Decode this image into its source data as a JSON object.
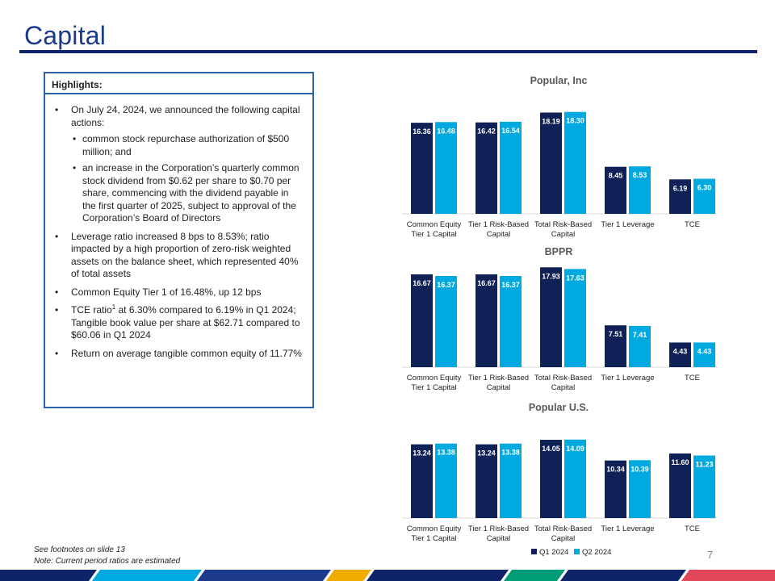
{
  "title": "Capital",
  "highlights": {
    "heading": "Highlights:",
    "b1": "On July 24, 2024, we announced the following capital actions:",
    "b1_sub1": "common stock repurchase authorization of $500 million; and",
    "b1_sub2": "an increase in the Corporation’s quarterly common stock dividend from $0.62 per share to $0.70 per share, commencing with the dividend payable in the first quarter of 2025, subject to approval of the Corporation’s Board of Directors",
    "b2": "Leverage ratio increased 8 bps to 8.53%; ratio impacted by a high proportion of zero-risk weighted assets on the balance sheet, which represented 40% of total assets",
    "b3": "Common Equity Tier 1 of 16.48%, up 12 bps",
    "b4_pre": "TCE ratio",
    "b4_sup": "1",
    "b4_post": " at 6.30% compared to 6.19% in Q1 2024; Tangible book value per share at $62.71 compared to $60.06 in Q1 2024",
    "b5": "Return on average tangible common equity of 11.77%"
  },
  "colors": {
    "title": "#1b3a8c",
    "q1": "#0f2157",
    "q2": "#00a9e0",
    "box_border": "#2a62ad"
  },
  "chart_data": [
    {
      "type": "bar",
      "title": "Popular, Inc",
      "categories": [
        "Common Equity Tier 1 Capital",
        "Tier 1 Risk-Based Capital",
        "Total Risk-Based Capital",
        "Tier 1 Leverage",
        "TCE"
      ],
      "series": [
        {
          "name": "Q1 2024",
          "values": [
            16.36,
            16.42,
            18.19,
            8.45,
            6.19
          ]
        },
        {
          "name": "Q2 2024",
          "values": [
            16.48,
            16.54,
            18.3,
            8.53,
            6.3
          ]
        }
      ],
      "ylim": [
        0,
        20
      ]
    },
    {
      "type": "bar",
      "title": "BPPR",
      "categories": [
        "Common Equity Tier 1 Capital",
        "Tier 1 Risk-Based Capital",
        "Total Risk-Based Capital",
        "Tier 1 Leverage",
        "TCE"
      ],
      "series": [
        {
          "name": "Q1 2024",
          "values": [
            16.67,
            16.67,
            17.93,
            7.51,
            4.43
          ]
        },
        {
          "name": "Q2 2024",
          "values": [
            16.37,
            16.37,
            17.63,
            7.41,
            4.43
          ]
        }
      ],
      "ylim": [
        0,
        20
      ]
    },
    {
      "type": "bar",
      "title": "Popular U.S.",
      "categories": [
        "Common Equity Tier 1 Capital",
        "Tier 1 Risk-Based Capital",
        "Total Risk-Based Capital",
        "Tier 1 Leverage",
        "TCE"
      ],
      "series": [
        {
          "name": "Q1 2024",
          "values": [
            13.24,
            13.24,
            14.05,
            10.34,
            11.6
          ]
        },
        {
          "name": "Q2 2024",
          "values": [
            13.38,
            13.38,
            14.09,
            10.39,
            11.23
          ]
        }
      ],
      "ylim": [
        0,
        20
      ],
      "legend": "bottom"
    }
  ],
  "legend": {
    "q1": "Q1 2024",
    "q2": "Q2 2024"
  },
  "footnotes": {
    "line1": "See footnotes on slide 13",
    "line2": "Note: Current period ratios are estimated"
  },
  "page_number": "7"
}
